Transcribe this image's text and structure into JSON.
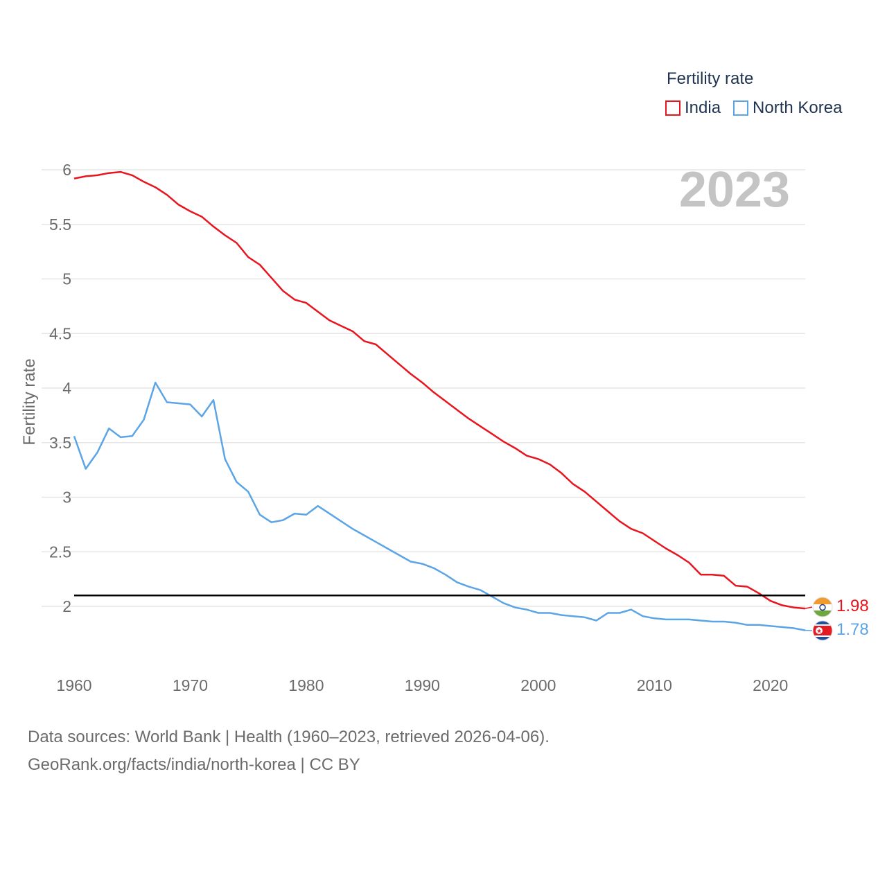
{
  "legend": {
    "title": "Fertility rate",
    "items": [
      {
        "label": "India",
        "color": "#e8141e"
      },
      {
        "label": "North Korea",
        "color": "#5ba4e5"
      }
    ]
  },
  "footer": {
    "line1": "Data sources: World Bank | Health (1960–2023, retrieved 2026-04-06).",
    "line2": "GeoRank.org/facts/india/north-korea | CC BY"
  },
  "chart_data": {
    "type": "line",
    "title": "Fertility rate",
    "year_label": "2023",
    "xlabel": "",
    "ylabel": "Fertility rate",
    "xlim": [
      1960,
      2023
    ],
    "ylim": [
      1.5,
      6.1
    ],
    "x_ticks": [
      1960,
      1970,
      1980,
      1990,
      2000,
      2010,
      2020
    ],
    "y_ticks": [
      2,
      2.5,
      3,
      3.5,
      4,
      4.5,
      5,
      5.5,
      6
    ],
    "grid": true,
    "reference_line": {
      "value": 2.1,
      "color": "#000000"
    },
    "x": [
      1960,
      1961,
      1962,
      1963,
      1964,
      1965,
      1966,
      1967,
      1968,
      1969,
      1970,
      1971,
      1972,
      1973,
      1974,
      1975,
      1976,
      1977,
      1978,
      1979,
      1980,
      1981,
      1982,
      1983,
      1984,
      1985,
      1986,
      1987,
      1988,
      1989,
      1990,
      1991,
      1992,
      1993,
      1994,
      1995,
      1996,
      1997,
      1998,
      1999,
      2000,
      2001,
      2002,
      2003,
      2004,
      2005,
      2006,
      2007,
      2008,
      2009,
      2010,
      2011,
      2012,
      2013,
      2014,
      2015,
      2016,
      2017,
      2018,
      2019,
      2020,
      2021,
      2022,
      2023
    ],
    "series": [
      {
        "name": "India",
        "color": "#e8141e",
        "end_label": "1.98",
        "values": [
          5.92,
          5.94,
          5.95,
          5.97,
          5.98,
          5.95,
          5.89,
          5.84,
          5.77,
          5.68,
          5.62,
          5.57,
          5.48,
          5.4,
          5.33,
          5.2,
          5.13,
          5.01,
          4.89,
          4.81,
          4.78,
          4.7,
          4.62,
          4.57,
          4.52,
          4.43,
          4.4,
          4.31,
          4.22,
          4.13,
          4.05,
          3.96,
          3.88,
          3.8,
          3.72,
          3.65,
          3.58,
          3.51,
          3.45,
          3.38,
          3.35,
          3.3,
          3.22,
          3.12,
          3.05,
          2.96,
          2.87,
          2.78,
          2.71,
          2.67,
          2.6,
          2.53,
          2.47,
          2.4,
          2.29,
          2.29,
          2.28,
          2.19,
          2.18,
          2.12,
          2.05,
          2.01,
          1.99,
          1.98
        ]
      },
      {
        "name": "North Korea",
        "color": "#5ba4e5",
        "end_label": "1.78",
        "values": [
          3.56,
          3.26,
          3.41,
          3.63,
          3.55,
          3.56,
          3.71,
          4.05,
          3.87,
          3.86,
          3.85,
          3.74,
          3.89,
          3.35,
          3.14,
          3.05,
          2.84,
          2.77,
          2.79,
          2.85,
          2.84,
          2.92,
          2.85,
          2.78,
          2.71,
          2.65,
          2.59,
          2.53,
          2.47,
          2.41,
          2.39,
          2.35,
          2.29,
          2.22,
          2.18,
          2.15,
          2.09,
          2.03,
          1.99,
          1.97,
          1.94,
          1.94,
          1.92,
          1.91,
          1.9,
          1.87,
          1.94,
          1.94,
          1.97,
          1.91,
          1.89,
          1.88,
          1.88,
          1.88,
          1.87,
          1.86,
          1.86,
          1.85,
          1.83,
          1.83,
          1.82,
          1.81,
          1.8,
          1.78
        ]
      }
    ]
  }
}
